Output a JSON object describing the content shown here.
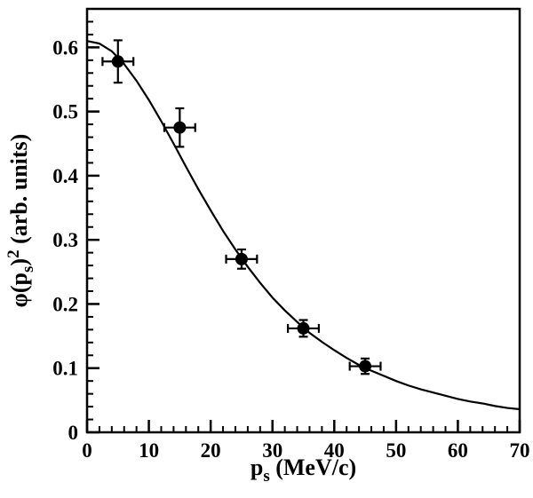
{
  "chart_data": {
    "type": "scatter",
    "title": "",
    "xlabel": {
      "prefix": "p",
      "sub": "s",
      "suffix": " (MeV/c)"
    },
    "ylabel": {
      "prefix": "φ(p",
      "sub": "s",
      "close": ")",
      "sup": "2",
      "suffix": " (arb. units)"
    },
    "xlim": [
      0,
      70
    ],
    "ylim": [
      0,
      0.66
    ],
    "x_major_ticks": [
      0,
      10,
      20,
      30,
      40,
      50,
      60,
      70
    ],
    "x_tick_labels": [
      "0",
      "10",
      "20",
      "30",
      "40",
      "50",
      "60",
      "70"
    ],
    "x_minor_step": 2,
    "y_major_ticks": [
      0,
      0.1,
      0.2,
      0.3,
      0.4,
      0.5,
      0.6
    ],
    "y_tick_labels": [
      "0",
      "0.1",
      "0.2",
      "0.3",
      "0.4",
      "0.5",
      "0.6"
    ],
    "y_minor_step": 0.02,
    "grid": false,
    "legend": "none",
    "points": [
      {
        "x": 5,
        "y": 0.578,
        "xerr": 2.5,
        "yerr": 0.033
      },
      {
        "x": 15,
        "y": 0.475,
        "xerr": 2.5,
        "yerr": 0.03
      },
      {
        "x": 25,
        "y": 0.27,
        "xerr": 2.5,
        "yerr": 0.015
      },
      {
        "x": 35,
        "y": 0.162,
        "xerr": 2.5,
        "yerr": 0.013
      },
      {
        "x": 45,
        "y": 0.103,
        "xerr": 2.5,
        "yerr": 0.012
      }
    ],
    "fit_curve": {
      "x": [
        0,
        2,
        4,
        6,
        8,
        10,
        12,
        14,
        16,
        18,
        20,
        22,
        24,
        26,
        28,
        30,
        32,
        34,
        36,
        38,
        40,
        42,
        44,
        46,
        48,
        50,
        52,
        54,
        56,
        58,
        60,
        62,
        64,
        66,
        68,
        70
      ],
      "y": [
        0.61,
        0.606,
        0.594,
        0.574,
        0.548,
        0.518,
        0.485,
        0.45,
        0.414,
        0.379,
        0.346,
        0.314,
        0.285,
        0.258,
        0.233,
        0.21,
        0.19,
        0.172,
        0.155,
        0.141,
        0.128,
        0.116,
        0.105,
        0.096,
        0.088,
        0.08,
        0.073,
        0.067,
        0.062,
        0.057,
        0.052,
        0.048,
        0.045,
        0.041,
        0.038,
        0.036
      ]
    },
    "colors": {
      "foreground": "#000000",
      "background": "#ffffff"
    }
  }
}
